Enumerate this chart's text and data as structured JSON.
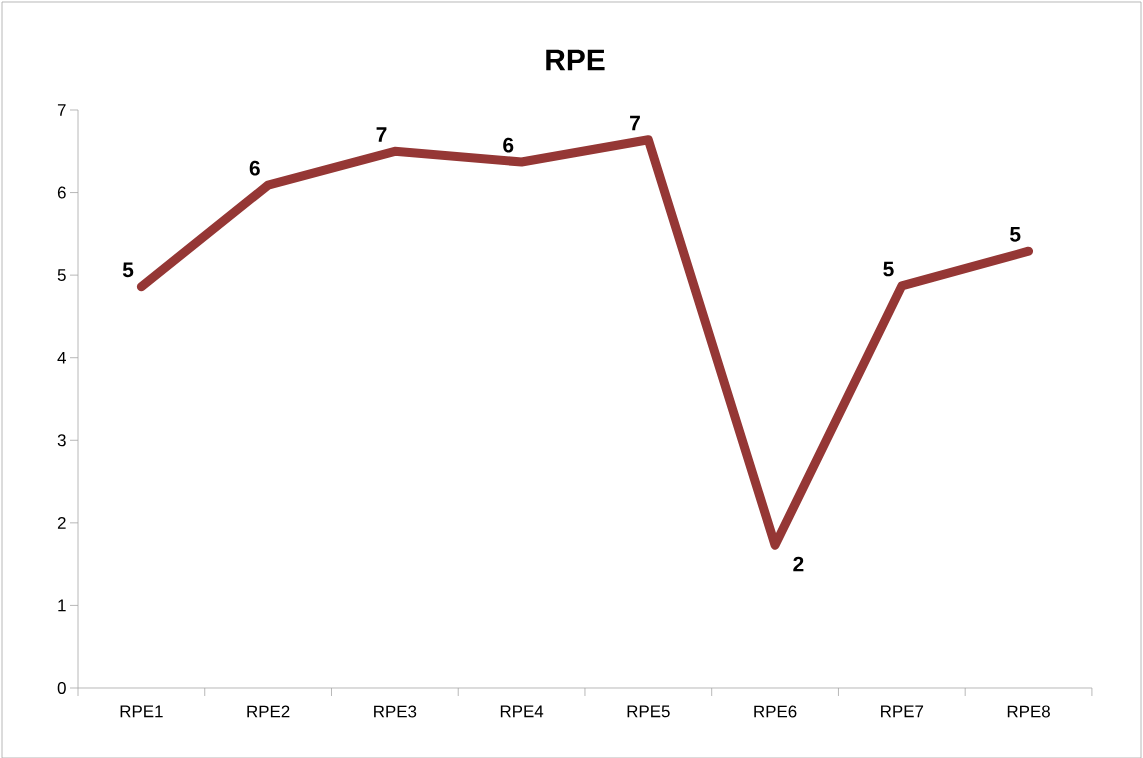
{
  "chart_data": {
    "type": "line",
    "title": "RPE",
    "categories": [
      "RPE1",
      "RPE2",
      "RPE3",
      "RPE4",
      "RPE5",
      "RPE6",
      "RPE7",
      "RPE8"
    ],
    "values": [
      4.86,
      6.09,
      6.5,
      6.37,
      6.64,
      1.73,
      4.87,
      5.29
    ],
    "value_labels": [
      "5",
      "6",
      "7",
      "6",
      "7",
      "2",
      "5",
      "5"
    ],
    "color": "#953735",
    "ylim": [
      0,
      7
    ],
    "yticks": [
      0,
      1,
      2,
      3,
      4,
      5,
      6,
      7
    ],
    "grid": false,
    "marker": "none",
    "line_style": "solid"
  }
}
